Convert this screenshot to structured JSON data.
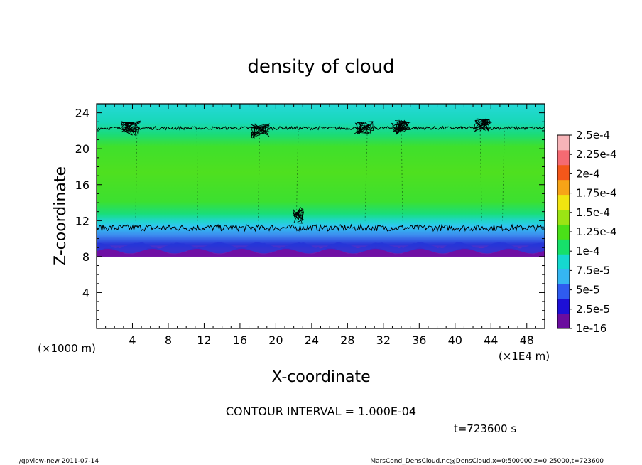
{
  "chart_data": {
    "type": "heatmap",
    "title": "density of cloud",
    "xlabel": "X-coordinate",
    "ylabel": "Z-coordinate",
    "x_unit": "(×1E4 m)",
    "z_unit": "(×1000 m)",
    "xlim": [
      0,
      50
    ],
    "ylim": [
      0,
      25
    ],
    "x_ticks": [
      4,
      8,
      12,
      16,
      20,
      24,
      28,
      32,
      36,
      40,
      44,
      48
    ],
    "x_tick_labels": [
      "4",
      "8",
      "12",
      "16",
      "20",
      "24",
      "28",
      "32",
      "36",
      "40",
      "44",
      "48"
    ],
    "y_ticks": [
      4,
      8,
      12,
      16,
      20,
      24
    ],
    "y_tick_labels": [
      "4",
      "8",
      "12",
      "16",
      "20",
      "24"
    ],
    "colorbar": {
      "labels": [
        "1e-16",
        "2.5e-5",
        "5e-5",
        "7.5e-5",
        "1e-4",
        "1.25e-4",
        "1.5e-4",
        "1.75e-4",
        "2e-4",
        "2.25e-4",
        "2.5e-4"
      ],
      "colors": [
        "#6a0d9e",
        "#1d0fd6",
        "#2f5bf0",
        "#35b6f2",
        "#15d9d0",
        "#16e06a",
        "#4ae018",
        "#9be414",
        "#f0e410",
        "#f7a417",
        "#f4571a",
        "#f56a72",
        "#f7b4b8"
      ]
    },
    "field_bands": [
      {
        "z": [
          8.0,
          8.3
        ],
        "value": 0
      },
      {
        "z": [
          8.3,
          9.3
        ],
        "value": 2.5e-05
      },
      {
        "z": [
          9.3,
          10.5
        ],
        "value": 5e-05
      },
      {
        "z": [
          10.5,
          11.3
        ],
        "value": 7.5e-05
      },
      {
        "z": [
          11.3,
          12.3
        ],
        "value": 0.000125
      },
      {
        "z": [
          12.3,
          21.0
        ],
        "value": 0.00015
      },
      {
        "z": [
          21.0,
          23.0
        ],
        "value": 0.000125
      },
      {
        "z": [
          23.0,
          25.0
        ],
        "value": 7.5e-05
      }
    ],
    "contour_levels_z": [
      11.2,
      22.3
    ],
    "contour_interval_label": "CONTOUR INTERVAL =  1.000E-04",
    "time_label": "t=723600 s"
  },
  "footer": {
    "left": "./gpview-new   2011-07-14",
    "right": "MarsCond_DensCloud.nc@DensCloud,x=0:500000,z=0:25000,t=723600"
  }
}
